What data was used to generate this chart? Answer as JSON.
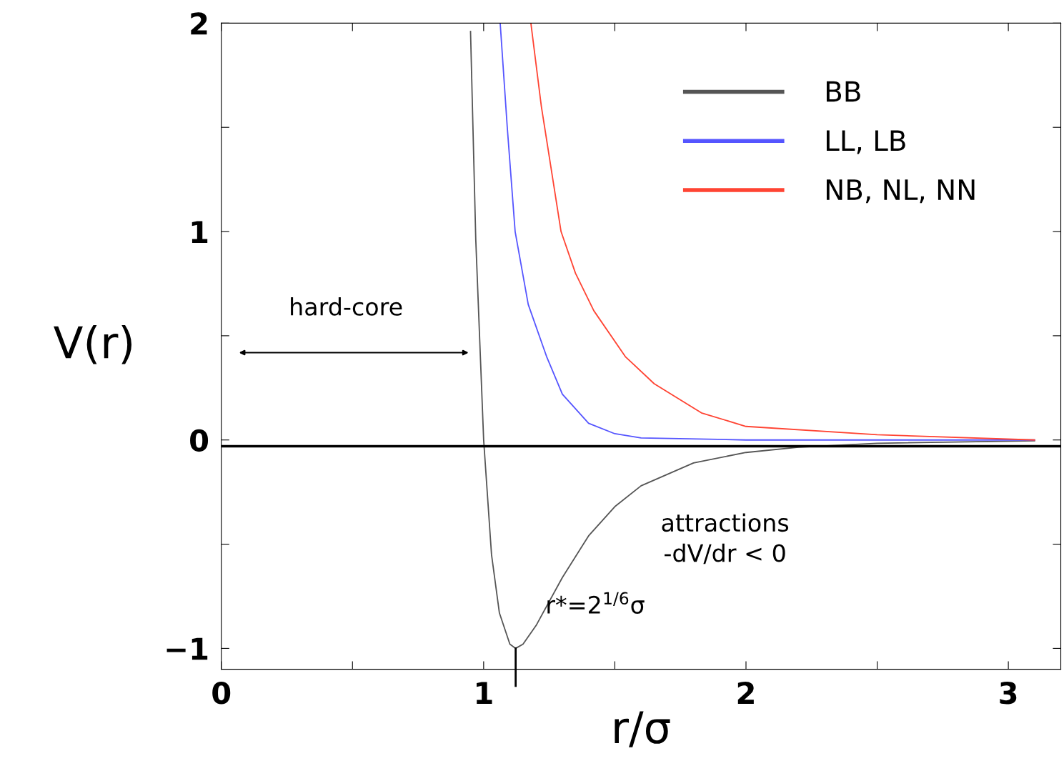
{
  "chart_data": {
    "type": "line",
    "xlabel": "r/σ",
    "ylabel": "V(r)",
    "xlim": [
      0,
      3.2
    ],
    "ylim": [
      -1.1,
      2
    ],
    "xticks": [
      0,
      {
        "value": 0.5,
        "label": null
      },
      1,
      {
        "value": 1.5,
        "label": null
      },
      2,
      {
        "value": 2.5,
        "label": null
      },
      3
    ],
    "yticks": [
      {
        "value": -1,
        "label": "−1"
      },
      {
        "value": -0.5,
        "label": null
      },
      0,
      {
        "value": 0.5,
        "label": null
      },
      1,
      {
        "value": 1.5,
        "label": null
      },
      2
    ],
    "grid": false,
    "legend": "top right",
    "marker": "none",
    "line_style": "solid",
    "series": [
      {
        "name": "BB",
        "color": "#555555",
        "x": [
          0.95,
          0.97,
          1.0,
          1.03,
          1.06,
          1.1,
          1.122,
          1.15,
          1.2,
          1.3,
          1.4,
          1.5,
          1.6,
          1.8,
          2.0,
          2.2,
          2.5,
          3.1
        ],
        "values": [
          1.96,
          0.96,
          0,
          -0.55,
          -0.83,
          -0.98,
          -1,
          -0.98,
          -0.89,
          -0.66,
          -0.46,
          -0.32,
          -0.22,
          -0.11,
          -0.06,
          -0.035,
          -0.016,
          -0.004
        ]
      },
      {
        "name": "LL, LB",
        "color": "#5555ff",
        "x": [
          1.063,
          1.09,
          1.12,
          1.17,
          1.24,
          1.3,
          1.4,
          1.5,
          1.6,
          2.0,
          3.1
        ],
        "values": [
          2.0,
          1.5,
          1.0,
          0.65,
          0.4,
          0.22,
          0.08,
          0.03,
          0.01,
          0.0,
          0.0
        ]
      },
      {
        "name": "NB, NL, NN",
        "color": "#ff4433",
        "x": [
          1.18,
          1.22,
          1.295,
          1.35,
          1.42,
          1.54,
          1.65,
          1.83,
          2.0,
          2.5,
          3.1
        ],
        "values": [
          2.0,
          1.6,
          1.0,
          0.8,
          0.62,
          0.4,
          0.27,
          0.13,
          0.065,
          0.025,
          0.0
        ]
      }
    ],
    "ref_lines": [
      {
        "axis": "y",
        "value": -0.03,
        "color": "#000000"
      }
    ],
    "annotations": [
      "hard-core",
      "attractions\n-dV/dr < 0",
      {
        "text": "r*=2$^{1/6}$σ",
        "x": 1.122,
        "y": -1
      }
    ]
  }
}
